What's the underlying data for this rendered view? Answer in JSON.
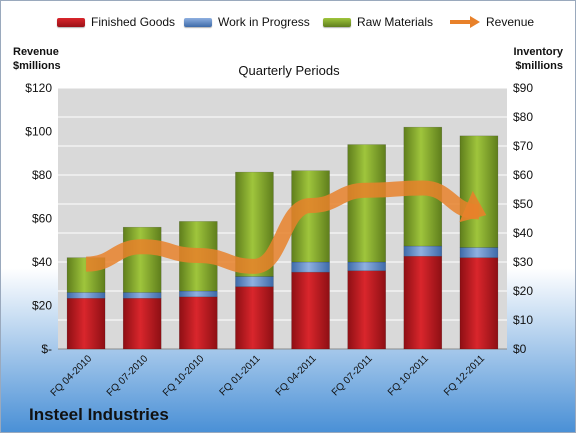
{
  "company": "Insteel Industries",
  "colors": {
    "finished_goods": "#c0181f",
    "work_in_progress": "#5b86c8",
    "raw_materials": "#8cb22e",
    "revenue": "#e8812a",
    "plot_bg": "#d9d9d9"
  },
  "chart_data": {
    "type": "bar",
    "subtype": "stacked bar with line overlay",
    "title": "Quarterly Periods",
    "left_axis_title": [
      "Revenue",
      "$millions"
    ],
    "right_axis_title": [
      "Inventory",
      "$millions"
    ],
    "categories": [
      "FQ 04-2010",
      "FQ 07-2010",
      "FQ 10-2010",
      "FQ 01-2011",
      "FQ 04-2011",
      "FQ 07-2011",
      "FQ 10-2011",
      "FQ 12-2011"
    ],
    "series": [
      {
        "name": "Finished Goods",
        "axis": "right",
        "values": [
          17.5,
          17.5,
          18,
          21.5,
          26.5,
          27,
          32,
          31.5
        ]
      },
      {
        "name": "Work in Progress",
        "axis": "right",
        "values": [
          2,
          2,
          2,
          3.5,
          3.5,
          3,
          3.5,
          3.5
        ]
      },
      {
        "name": "Raw Materials",
        "axis": "right",
        "values": [
          12,
          22.5,
          24,
          36,
          31.5,
          40.5,
          41,
          38.5
        ]
      },
      {
        "name": "Revenue",
        "axis": "left",
        "type": "line",
        "values": [
          39,
          47,
          43,
          38,
          66,
          73,
          74,
          63
        ]
      }
    ],
    "left_axis": {
      "min": 0,
      "max": 120,
      "step": 20,
      "tick_labels": [
        "$-",
        "$20",
        "$40",
        "$60",
        "$80",
        "$100",
        "$120"
      ]
    },
    "right_axis": {
      "min": 0,
      "max": 90,
      "step": 10,
      "tick_labels": [
        "$0",
        "$10",
        "$20",
        "$30",
        "$40",
        "$50",
        "$60",
        "$70",
        "$80",
        "$90"
      ]
    },
    "legend_position": "top",
    "grid": true
  }
}
